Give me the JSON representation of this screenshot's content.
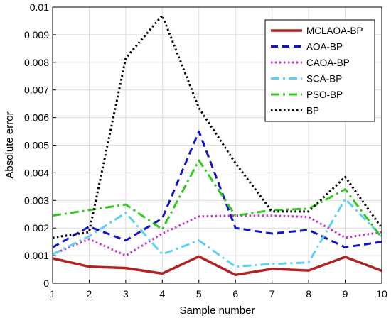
{
  "chart_data": {
    "type": "line",
    "title": "",
    "xlabel": "Sample number",
    "ylabel": "Absolute error",
    "x": [
      1,
      2,
      3,
      4,
      5,
      6,
      7,
      8,
      9,
      10
    ],
    "xlim": [
      1,
      10
    ],
    "ylim": [
      0,
      0.01
    ],
    "xticks": [
      "1",
      "2",
      "3",
      "4",
      "5",
      "6",
      "7",
      "8",
      "9",
      "10"
    ],
    "yticks": [
      "0",
      "0.001",
      "0.002",
      "0.003",
      "0.004",
      "0.005",
      "0.006",
      "0.007",
      "0.008",
      "0.009",
      "0.01"
    ],
    "grid": true,
    "legend_position": "top-right",
    "series": [
      {
        "name": "MCLAOA-BP",
        "color": "#b22222",
        "dash": "solid",
        "width": 3.5,
        "values": [
          0.0009,
          0.0006,
          0.00055,
          0.00035,
          0.00097,
          0.0003,
          0.00052,
          0.00046,
          0.00095,
          0.00045
        ]
      },
      {
        "name": "AOA-BP",
        "color": "#1414c8",
        "dash": "dashed",
        "width": 3,
        "values": [
          0.0013,
          0.00205,
          0.00155,
          0.00235,
          0.0055,
          0.002,
          0.0018,
          0.00193,
          0.0013,
          0.0015
        ]
      },
      {
        "name": "CAOA-BP",
        "color": "#c832c8",
        "dash": "dotted",
        "width": 3,
        "values": [
          0.00105,
          0.0016,
          0.001,
          0.0018,
          0.00242,
          0.00245,
          0.00245,
          0.0024,
          0.00165,
          0.00185
        ]
      },
      {
        "name": "SCA-BP",
        "color": "#5ad2f0",
        "dash": "dashdot",
        "width": 3,
        "values": [
          0.00105,
          0.0017,
          0.00255,
          0.00105,
          0.00155,
          0.0006,
          0.0007,
          0.00075,
          0.00305,
          0.0017
        ]
      },
      {
        "name": "PSO-BP",
        "color": "#32c81e",
        "dash": "dashdot",
        "width": 3,
        "values": [
          0.00245,
          0.00265,
          0.00285,
          0.00195,
          0.00445,
          0.00245,
          0.00265,
          0.0027,
          0.0034,
          0.00165
        ]
      },
      {
        "name": "BP",
        "color": "#000000",
        "dash": "dotted",
        "width": 3,
        "values": [
          0.00165,
          0.00185,
          0.00815,
          0.0097,
          0.00635,
          0.00435,
          0.0026,
          0.0026,
          0.00385,
          0.002
        ]
      }
    ]
  }
}
